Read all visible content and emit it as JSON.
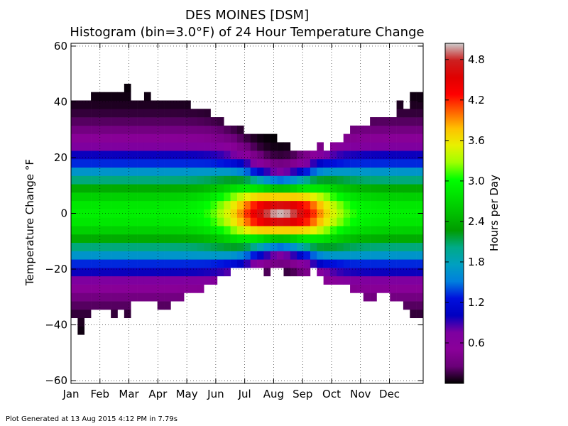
{
  "footer": "Plot Generated at 13 Aug 2015 4:12 PM in 7.79s",
  "chart_data": {
    "type": "heatmap",
    "title": "DES MOINES [DSM]",
    "subtitle": "Histogram (bin=3.0$^\\circ$F) of 24 Hour Temperature Change",
    "title_lines": [
      "DES MOINES [DSM]",
      "Histogram (bin=3.0°F) of 24 Hour Temperature Change"
    ],
    "ylabel": "Temperature Change °F",
    "xlabel": "",
    "colorbar_label": "Hours per Day",
    "x_ticks": [
      "Jan",
      "Feb",
      "Mar",
      "Apr",
      "May",
      "Jun",
      "Jul",
      "Aug",
      "Sep",
      "Oct",
      "Nov",
      "Dec"
    ],
    "y_ticks": [
      60,
      40,
      20,
      0,
      -20,
      -40,
      -60
    ],
    "colorbar_ticks": [
      4.8,
      4.2,
      3.6,
      3.0,
      2.4,
      1.8,
      1.2,
      0.6
    ],
    "ylim": [
      -61,
      61
    ],
    "colorbar_range": [
      0,
      5.04
    ],
    "bin_size_f": 3.0,
    "n_weeks": 53,
    "grid": true,
    "colormap": "nipy_spectral",
    "extent_by_week": {
      "comment": "approximate warmest and coldest bins with data for each week (°F)",
      "max": [
        40,
        40,
        40,
        43,
        43,
        43,
        43,
        43,
        46,
        40,
        40,
        43,
        40,
        40,
        40,
        40,
        40,
        40,
        37,
        37,
        37,
        34,
        34,
        31,
        31,
        31,
        28,
        28,
        28,
        28,
        28,
        25,
        25,
        22,
        22,
        22,
        22,
        25,
        22,
        25,
        25,
        28,
        31,
        31,
        31,
        34,
        34,
        34,
        34,
        40,
        37,
        43,
        43
      ],
      "min": [
        -37,
        -43,
        -37,
        -34,
        -34,
        -34,
        -37,
        -34,
        -37,
        -31,
        -31,
        -31,
        -31,
        -34,
        -34,
        -31,
        -31,
        -28,
        -28,
        -28,
        -25,
        -25,
        -22,
        -22,
        -19,
        -19,
        -19,
        -19,
        -19,
        -22,
        -19,
        -19,
        -22,
        -22,
        -22,
        -22,
        -19,
        -22,
        -25,
        -25,
        -25,
        -25,
        -28,
        -28,
        -31,
        -31,
        -28,
        -28,
        -31,
        -31,
        -34,
        -37,
        -37
      ]
    },
    "peak": {
      "month": "Aug",
      "temperature_change_f": 0,
      "hours_per_day": 5.0
    }
  }
}
